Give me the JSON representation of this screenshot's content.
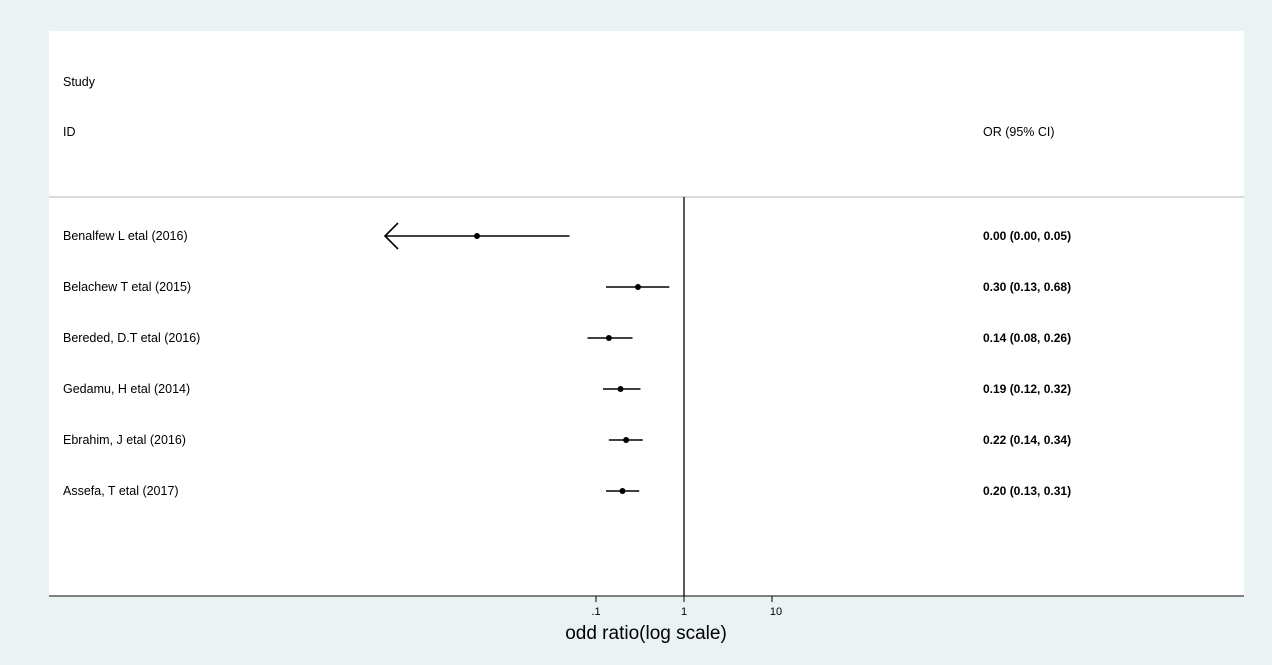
{
  "chart_data": {
    "type": "forest",
    "header": {
      "study_line1": "Study",
      "study_line2": "ID",
      "estimate": "OR (95% CI)"
    },
    "studies": [
      {
        "label": "Benalfew L etal (2016)",
        "or": 0.0,
        "lower": 0.0,
        "upper": 0.05,
        "text": "0.00 (0.00, 0.05)",
        "arrow_left": true
      },
      {
        "label": "Belachew T etal (2015)",
        "or": 0.3,
        "lower": 0.13,
        "upper": 0.68,
        "text": "0.30 (0.13, 0.68)",
        "arrow_left": false
      },
      {
        "label": "Bereded, D.T etal (2016)",
        "or": 0.14,
        "lower": 0.08,
        "upper": 0.26,
        "text": "0.14 (0.08, 0.26)",
        "arrow_left": false
      },
      {
        "label": "Gedamu, H etal (2014)",
        "or": 0.19,
        "lower": 0.12,
        "upper": 0.32,
        "text": "0.19 (0.12, 0.32)",
        "arrow_left": false
      },
      {
        "label": "Ebrahim, J etal (2016)",
        "or": 0.22,
        "lower": 0.14,
        "upper": 0.34,
        "text": "0.22 (0.14, 0.34)",
        "arrow_left": false
      },
      {
        "label": "Assefa, T etal  (2017)",
        "or": 0.2,
        "lower": 0.13,
        "upper": 0.31,
        "text": "0.20 (0.13, 0.31)",
        "arrow_left": false
      }
    ],
    "x_scale": "log",
    "x_ticks": [
      {
        "value": 0.1,
        "label": ".1"
      },
      {
        "value": 1,
        "label": "1"
      },
      {
        "value": 10,
        "label": "10"
      }
    ],
    "reference_line": 1,
    "xlabel": "odd ratio(log scale)"
  }
}
